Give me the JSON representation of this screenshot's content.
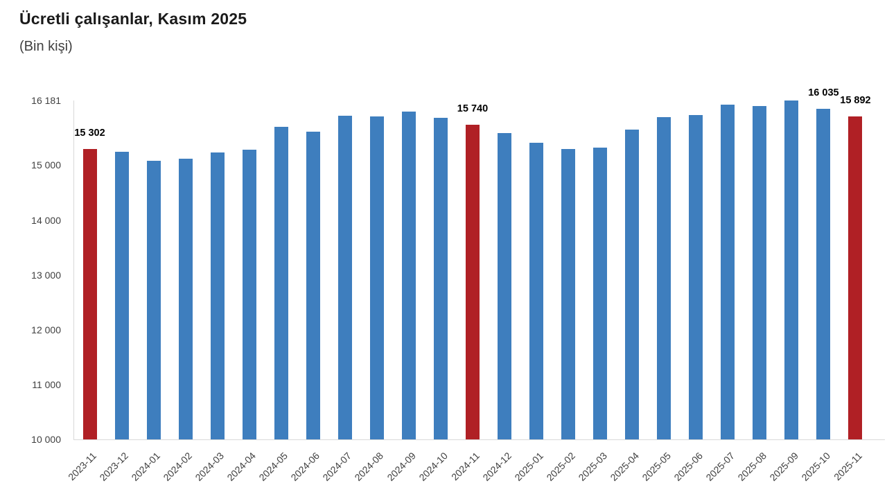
{
  "page": {
    "background": "#ffffff"
  },
  "chart_data": {
    "type": "bar",
    "title": "Ücretli çalışanlar, Kasım 2025",
    "subtitle": "(Bin kişi)",
    "categories": [
      "2023-11",
      "2023-12",
      "2024-01",
      "2024-02",
      "2024-03",
      "2024-04",
      "2024-05",
      "2024-06",
      "2024-07",
      "2024-08",
      "2024-09",
      "2024-10",
      "2024-11",
      "2024-12",
      "2025-01",
      "2025-02",
      "2025-03",
      "2025-04",
      "2025-05",
      "2025-06",
      "2025-07",
      "2025-08",
      "2025-09",
      "2025-10",
      "2025-11"
    ],
    "values": [
      15302,
      15245,
      15085,
      15125,
      15230,
      15285,
      15700,
      15615,
      15900,
      15895,
      15985,
      15860,
      15740,
      15590,
      15410,
      15290,
      15320,
      15650,
      15880,
      15920,
      16110,
      16085,
      16181,
      16035,
      15892
    ],
    "highlighted_indices": [
      0,
      12,
      24
    ],
    "point_labels": {
      "0": "15 302",
      "12": "15 740",
      "23": "16 035",
      "24": "15 892"
    },
    "ylim": [
      10000,
      16181
    ],
    "y_ticks": [
      {
        "value": 10000,
        "label": "10 000"
      },
      {
        "value": 11000,
        "label": "11 000"
      },
      {
        "value": 12000,
        "label": "12 000"
      },
      {
        "value": 13000,
        "label": "13 000"
      },
      {
        "value": 14000,
        "label": "14 000"
      },
      {
        "value": 15000,
        "label": "15 000"
      },
      {
        "value": 16181,
        "label": "16 181"
      }
    ],
    "grid": "off",
    "legend": "none",
    "colors": {
      "bar": "#3E7EBE",
      "highlight": "#B02025",
      "axis_line": "#D9D9D9",
      "tick_text": "#404040",
      "data_label_text": "#000000"
    }
  }
}
